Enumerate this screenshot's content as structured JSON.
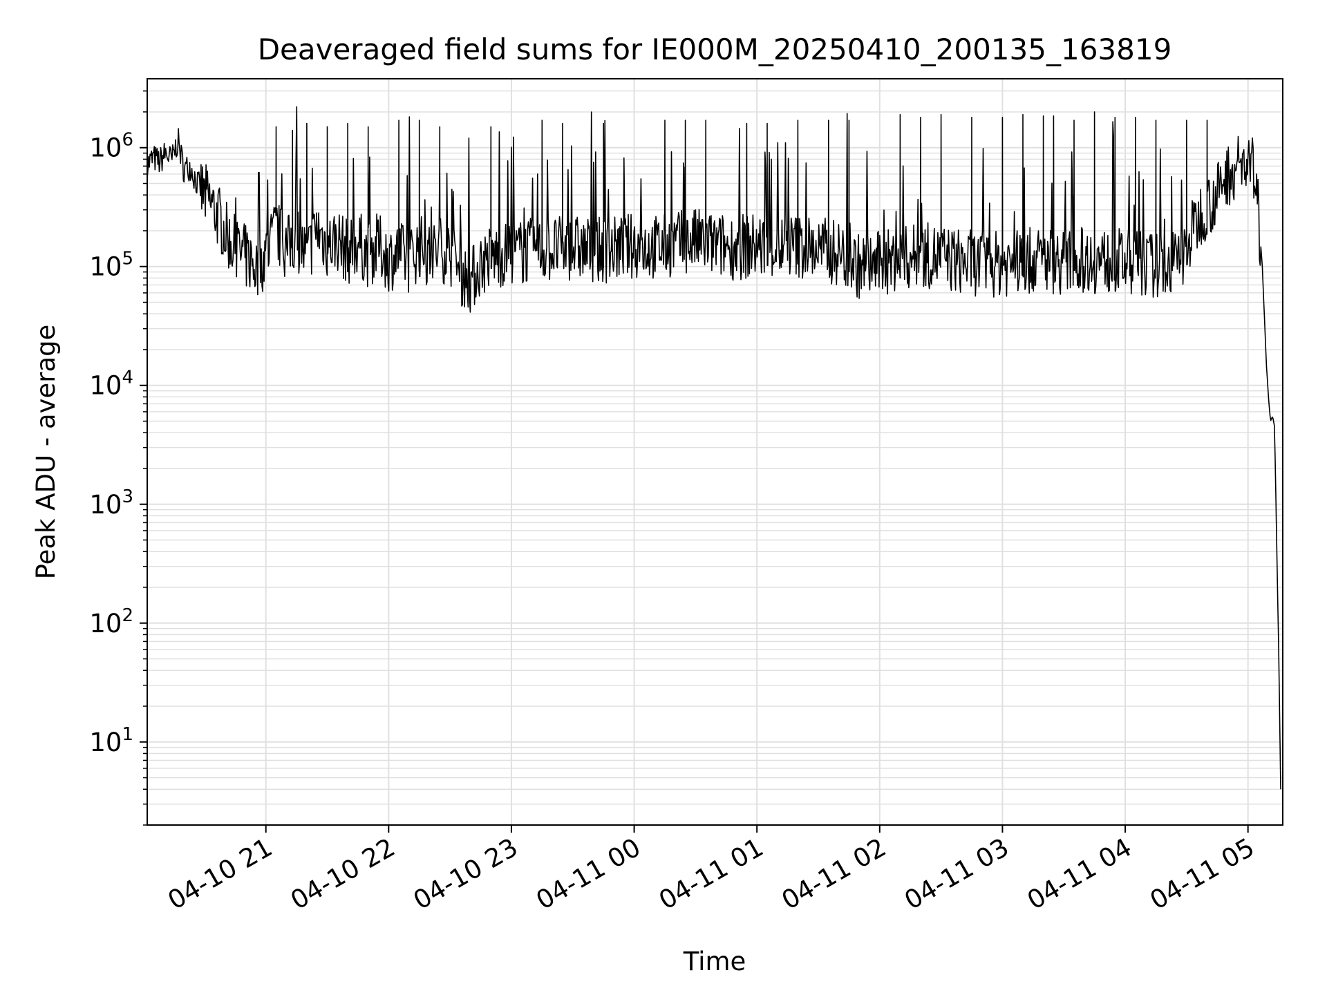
{
  "chart_data": {
    "type": "line",
    "title": "Deaveraged field sums for IE000M_20250410_200135_163819",
    "xlabel": "Time",
    "ylabel": "Peak ADU - average",
    "yscale": "log",
    "ylim": [
      2,
      3800000
    ],
    "xlim": [
      "2025-04-10 20:02",
      "2025-04-11 05:17"
    ],
    "x_ticks": [
      {
        "t": "2025-04-10 21:00",
        "label": "04-10 21"
      },
      {
        "t": "2025-04-10 22:00",
        "label": "04-10 22"
      },
      {
        "t": "2025-04-10 23:00",
        "label": "04-10 23"
      },
      {
        "t": "2025-04-11 00:00",
        "label": "04-11 00"
      },
      {
        "t": "2025-04-11 01:00",
        "label": "04-11 01"
      },
      {
        "t": "2025-04-11 02:00",
        "label": "04-11 02"
      },
      {
        "t": "2025-04-11 03:00",
        "label": "04-11 03"
      },
      {
        "t": "2025-04-11 04:00",
        "label": "04-11 04"
      },
      {
        "t": "2025-04-11 05:00",
        "label": "04-11 05"
      }
    ],
    "y_ticks": [
      {
        "value": 10,
        "base": "10",
        "exp": "1"
      },
      {
        "value": 100,
        "base": "10",
        "exp": "2"
      },
      {
        "value": 1000,
        "base": "10",
        "exp": "3"
      },
      {
        "value": 10000,
        "base": "10",
        "exp": "4"
      },
      {
        "value": 100000,
        "base": "10",
        "exp": "5"
      },
      {
        "value": 1000000,
        "base": "10",
        "exp": "6"
      }
    ],
    "grid": true,
    "line_color": "#000000",
    "grid_color": "#e0e0e0",
    "series": [
      {
        "points": [
          [
            "2025-04-10 20:02",
            720000
          ],
          [
            "2025-04-10 20:05",
            820000
          ],
          [
            "2025-04-10 20:08",
            760000
          ],
          [
            "2025-04-10 20:11",
            900000
          ],
          [
            "2025-04-10 20:14",
            780000
          ],
          [
            "2025-04-10 20:17",
            1150000
          ],
          [
            "2025-04-10 20:20",
            650000
          ],
          [
            "2025-04-10 20:23",
            700000
          ],
          [
            "2025-04-10 20:26",
            520000
          ],
          [
            "2025-04-10 20:29",
            420000
          ],
          [
            "2025-04-10 20:32",
            360000
          ],
          [
            "2025-04-10 20:35",
            300000
          ],
          [
            "2025-04-10 20:38",
            240000
          ],
          [
            "2025-04-10 20:41",
            180000
          ],
          [
            "2025-04-10 20:44",
            150000
          ],
          [
            "2025-04-10 20:47",
            130000
          ],
          [
            "2025-04-10 20:50",
            120000
          ],
          [
            "2025-04-10 20:53",
            110000
          ],
          [
            "2025-04-10 20:56",
            95000
          ],
          [
            "2025-04-10 21:00",
            130000
          ],
          [
            "2025-04-10 21:05",
            200000
          ],
          [
            "2025-04-10 21:10",
            140000
          ],
          [
            "2025-04-10 21:15",
            180000
          ],
          [
            "2025-04-10 21:20",
            120000
          ],
          [
            "2025-04-10 21:25",
            210000
          ],
          [
            "2025-04-10 21:30",
            150000
          ],
          [
            "2025-04-10 21:35",
            170000
          ],
          [
            "2025-04-10 21:40",
            130000
          ],
          [
            "2025-04-10 21:45",
            160000
          ],
          [
            "2025-04-10 21:50",
            125000
          ],
          [
            "2025-04-10 21:55",
            150000
          ],
          [
            "2025-04-10 22:00",
            115000
          ],
          [
            "2025-04-10 22:05",
            130000
          ],
          [
            "2025-04-10 22:10",
            110000
          ],
          [
            "2025-04-10 22:15",
            150000
          ],
          [
            "2025-04-10 22:20",
            120000
          ],
          [
            "2025-04-10 22:25",
            140000
          ],
          [
            "2025-04-10 22:30",
            130000
          ],
          [
            "2025-04-10 22:35",
            90000
          ],
          [
            "2025-04-10 22:40",
            75000
          ],
          [
            "2025-04-10 22:45",
            105000
          ],
          [
            "2025-04-10 22:50",
            120000
          ],
          [
            "2025-04-10 22:55",
            125000
          ],
          [
            "2025-04-10 23:00",
            130000
          ],
          [
            "2025-04-10 23:10",
            135000
          ],
          [
            "2025-04-10 23:20",
            140000
          ],
          [
            "2025-04-10 23:30",
            145000
          ],
          [
            "2025-04-10 23:40",
            135000
          ],
          [
            "2025-04-10 23:50",
            140000
          ],
          [
            "2025-04-11 00:00",
            150000
          ],
          [
            "2025-04-11 00:10",
            145000
          ],
          [
            "2025-04-11 00:20",
            155000
          ],
          [
            "2025-04-11 00:30",
            165000
          ],
          [
            "2025-04-11 00:40",
            150000
          ],
          [
            "2025-04-11 00:50",
            145000
          ],
          [
            "2025-04-11 01:00",
            150000
          ],
          [
            "2025-04-11 01:10",
            145000
          ],
          [
            "2025-04-11 01:20",
            150000
          ],
          [
            "2025-04-11 01:30",
            140000
          ],
          [
            "2025-04-11 01:40",
            130000
          ],
          [
            "2025-04-11 01:50",
            100000
          ],
          [
            "2025-04-11 02:00",
            105000
          ],
          [
            "2025-04-11 02:10",
            115000
          ],
          [
            "2025-04-11 02:20",
            125000
          ],
          [
            "2025-04-11 02:30",
            120000
          ],
          [
            "2025-04-11 02:40",
            110000
          ],
          [
            "2025-04-11 02:50",
            105000
          ],
          [
            "2025-04-11 03:00",
            105000
          ],
          [
            "2025-04-11 03:10",
            110000
          ],
          [
            "2025-04-11 03:20",
            115000
          ],
          [
            "2025-04-11 03:30",
            110000
          ],
          [
            "2025-04-11 03:40",
            115000
          ],
          [
            "2025-04-11 03:50",
            110000
          ],
          [
            "2025-04-11 04:00",
            110000
          ],
          [
            "2025-04-11 04:10",
            105000
          ],
          [
            "2025-04-11 04:20",
            100000
          ],
          [
            "2025-04-11 04:28",
            120000
          ],
          [
            "2025-04-11 04:33",
            200000
          ],
          [
            "2025-04-11 04:38",
            300000
          ],
          [
            "2025-04-11 04:42",
            350000
          ],
          [
            "2025-04-11 04:46",
            420000
          ],
          [
            "2025-04-11 04:50",
            600000
          ],
          [
            "2025-04-11 04:54",
            680000
          ],
          [
            "2025-04-11 04:58",
            720000
          ],
          [
            "2025-04-11 05:01",
            740000
          ],
          [
            "2025-04-11 05:03",
            600000
          ],
          [
            "2025-04-11 05:05",
            300000
          ],
          [
            "2025-04-11 05:07",
            100000
          ],
          [
            "2025-04-11 05:09",
            15000
          ],
          [
            "2025-04-11 05:10",
            8000
          ],
          [
            "2025-04-11 05:11",
            5000
          ],
          [
            "2025-04-11 05:12",
            5500
          ],
          [
            "2025-04-11 05:13",
            4500
          ],
          [
            "2025-04-11 05:14",
            500
          ],
          [
            "2025-04-11 05:15",
            60
          ],
          [
            "2025-04-11 05:16",
            4
          ]
        ],
        "spikes": [
          [
            "2025-04-10 21:05",
            1500000
          ],
          [
            "2025-04-10 21:13",
            1400000
          ],
          [
            "2025-04-10 21:20",
            1600000
          ],
          [
            "2025-04-10 21:30",
            1500000
          ],
          [
            "2025-04-10 21:40",
            1600000
          ],
          [
            "2025-04-10 21:50",
            1500000
          ],
          [
            "2025-04-10 22:05",
            1700000
          ],
          [
            "2025-04-10 22:15",
            1700000
          ],
          [
            "2025-04-10 22:25",
            1500000
          ],
          [
            "2025-04-10 22:50",
            1500000
          ],
          [
            "2025-04-10 23:15",
            1700000
          ],
          [
            "2025-04-10 23:25",
            1600000
          ],
          [
            "2025-04-10 23:45",
            1600000
          ],
          [
            "2025-04-11 00:15",
            1700000
          ],
          [
            "2025-04-11 00:25",
            1700000
          ],
          [
            "2025-04-11 00:35",
            1700000
          ],
          [
            "2025-04-11 00:55",
            1600000
          ],
          [
            "2025-04-11 01:05",
            1600000
          ],
          [
            "2025-04-11 01:20",
            1700000
          ],
          [
            "2025-04-11 01:35",
            1700000
          ],
          [
            "2025-04-11 01:45",
            1700000
          ],
          [
            "2025-04-11 02:10",
            1900000
          ],
          [
            "2025-04-11 02:20",
            1800000
          ],
          [
            "2025-04-11 02:30",
            1900000
          ],
          [
            "2025-04-11 02:45",
            1800000
          ],
          [
            "2025-04-11 03:00",
            1800000
          ],
          [
            "2025-04-11 03:10",
            1900000
          ],
          [
            "2025-04-11 03:20",
            1850000
          ],
          [
            "2025-04-11 03:25",
            1850000
          ],
          [
            "2025-04-11 03:35",
            1700000
          ],
          [
            "2025-04-11 03:45",
            2000000
          ],
          [
            "2025-04-11 03:55",
            1800000
          ],
          [
            "2025-04-11 04:05",
            1800000
          ],
          [
            "2025-04-11 04:15",
            1700000
          ],
          [
            "2025-04-11 04:30",
            1700000
          ],
          [
            "2025-04-11 04:40",
            1700000
          ]
        ]
      }
    ]
  }
}
